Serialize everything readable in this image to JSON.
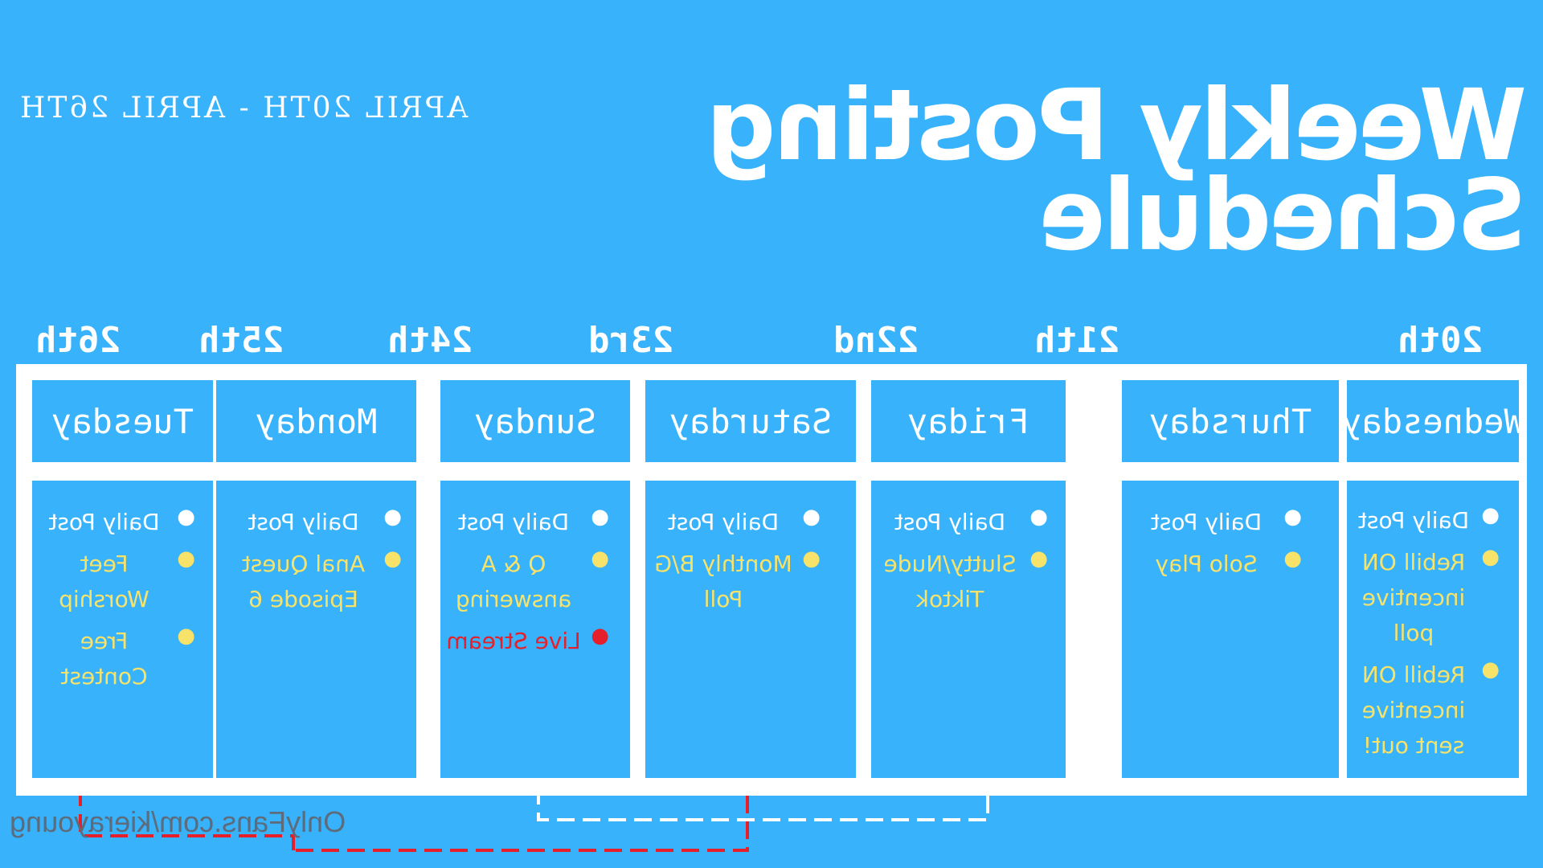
{
  "title": {
    "line1": "Weekly Posting",
    "line2": "Schedule"
  },
  "date_range": "APRIL 20TH - APRIL 26TH",
  "watermark": "OnlyFans.com/kierayoung",
  "colors": {
    "background": "#38b2fb",
    "white": "#ffffff",
    "yellow": "#f7e36a",
    "red": "#e5202a",
    "watermark": "#5d6b7a"
  },
  "days": [
    {
      "num": "20th",
      "name": "Wednesday",
      "items": [
        {
          "text": "Daily Post",
          "color": "white"
        },
        {
          "text": "Rebill ON incentive poll",
          "color": "yellow"
        },
        {
          "text": "Rebill ON incentive sent out!",
          "color": "yellow"
        }
      ]
    },
    {
      "num": "21th",
      "name": "Thursday",
      "items": [
        {
          "text": "Daily Post",
          "color": "white"
        },
        {
          "text": "Solo Play",
          "color": "yellow"
        }
      ]
    },
    {
      "num": "22nd",
      "name": "Friday",
      "items": [
        {
          "text": "Daily Post",
          "color": "white"
        },
        {
          "text": "Slutty/Nude Tiktok",
          "color": "yellow"
        }
      ]
    },
    {
      "num": "23rd",
      "name": "Saturday",
      "items": [
        {
          "text": "Daily Post",
          "color": "white"
        },
        {
          "text": "Monthly B/G Poll",
          "color": "yellow"
        }
      ]
    },
    {
      "num": "24th",
      "name": "Sunday",
      "items": [
        {
          "text": "Daily Post",
          "color": "white"
        },
        {
          "text": "Q & A answering",
          "color": "yellow"
        },
        {
          "text": "Live Stream",
          "color": "red"
        }
      ]
    },
    {
      "num": "25th",
      "name": "Monday",
      "items": [
        {
          "text": "Daily Post",
          "color": "white"
        },
        {
          "text": "Anal Quest Episode 6",
          "color": "yellow"
        }
      ]
    },
    {
      "num": "26th",
      "name": "Tuesday",
      "items": [
        {
          "text": "Daily Post",
          "color": "white"
        },
        {
          "text": "Feet Worship",
          "color": "yellow"
        },
        {
          "text": "Free Contest",
          "color": "yellow"
        }
      ]
    }
  ]
}
